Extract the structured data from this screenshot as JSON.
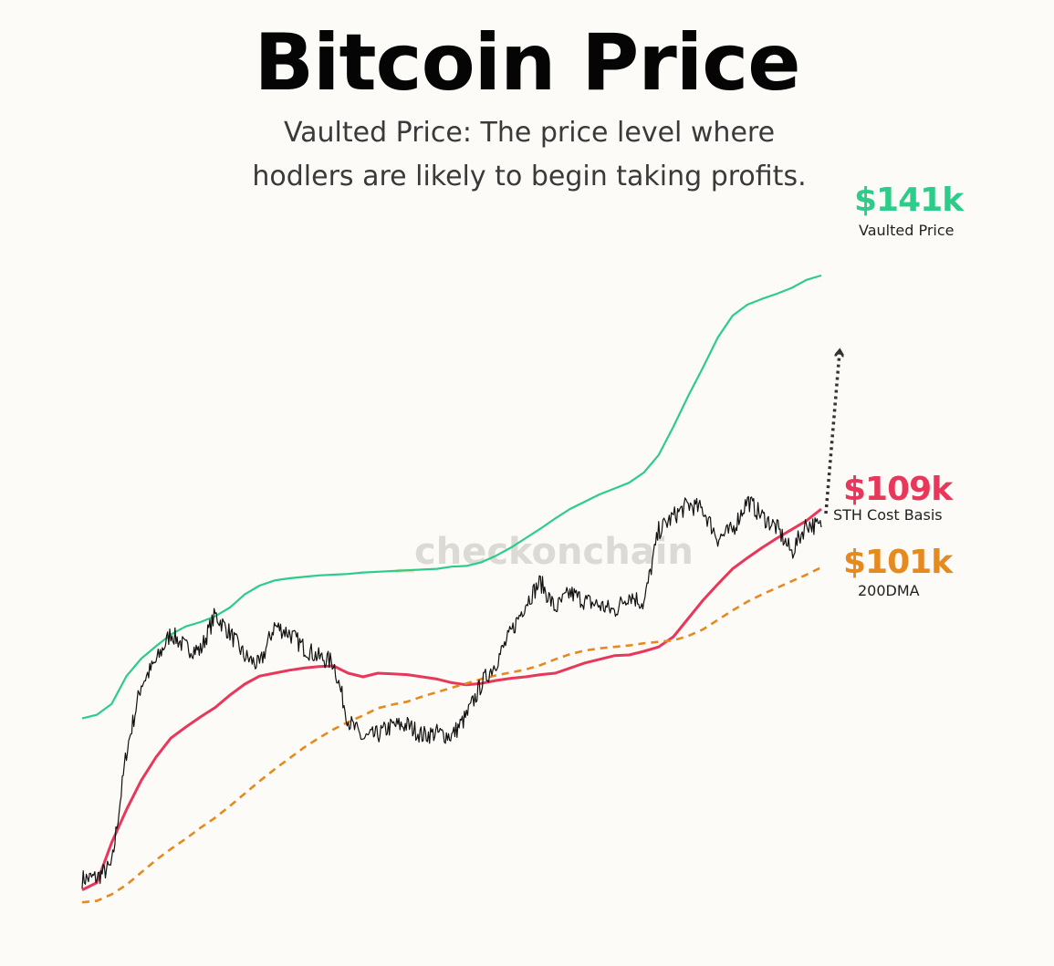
{
  "title": "Bitcoin Price",
  "subtitle_line1": "Vaulted Price: The price level where",
  "subtitle_line2": "hodlers are likely to begin taking profits.",
  "watermark_prefix": "_",
  "watermark_text": "checkonchain",
  "colors": {
    "price": "#111111",
    "vaulted": "#2ecc8a",
    "sth": "#e8375a",
    "dma": "#e58a1f",
    "arrow": "#333333",
    "background": "#fcfbf8"
  },
  "labels": {
    "vaulted": {
      "value": "$141k",
      "name": "Vaulted Price"
    },
    "sth": {
      "value": "$109k",
      "name": "STH Cost Basis"
    },
    "dma": {
      "value": "$101k",
      "name": "200DMA"
    }
  },
  "chart_data": {
    "type": "line",
    "title": "Bitcoin Price",
    "xlabel": "",
    "ylabel": "",
    "axes_visible": false,
    "grid": false,
    "legend": "none",
    "y_unit": "USD thousands (approx.)",
    "ylim": [
      55,
      150
    ],
    "x": [
      0,
      2,
      4,
      6,
      8,
      10,
      12,
      14,
      16,
      18,
      20,
      22,
      24,
      26,
      28,
      30,
      32,
      34,
      36,
      38,
      40,
      42,
      44,
      46,
      48,
      50,
      52,
      54,
      56,
      58,
      60,
      62,
      64,
      66,
      68,
      70,
      72,
      74,
      76,
      78,
      80,
      82,
      84,
      86,
      88,
      90,
      92,
      94,
      96,
      98,
      100
    ],
    "series": [
      {
        "name": "Vaulted Price",
        "values": [
          80.3,
          80.8,
          82.3,
          86.1,
          88.5,
          90.2,
          91.8,
          92.9,
          93.5,
          94.3,
          95.5,
          97.3,
          98.5,
          99.2,
          99.5,
          99.7,
          99.9,
          100.0,
          100.1,
          100.3,
          100.4,
          100.5,
          100.6,
          100.7,
          100.8,
          101.1,
          101.2,
          101.7,
          102.6,
          103.7,
          105.0,
          106.3,
          107.7,
          109.0,
          110.0,
          111.0,
          111.8,
          112.6,
          114.0,
          116.4,
          120.3,
          124.5,
          128.4,
          132.5,
          135.5,
          137.0,
          137.8,
          138.5,
          139.3,
          140.4,
          141.0
        ]
      },
      {
        "name": "STH Cost Basis",
        "values": [
          56.8,
          57.8,
          63.3,
          67.8,
          71.8,
          75.0,
          77.6,
          79.1,
          80.5,
          81.8,
          83.5,
          85.0,
          86.1,
          86.5,
          86.9,
          87.2,
          87.4,
          87.5,
          86.5,
          86.0,
          86.5,
          86.4,
          86.3,
          86.0,
          85.7,
          85.2,
          84.9,
          85.1,
          85.5,
          85.8,
          86.0,
          86.3,
          86.5,
          87.2,
          87.9,
          88.4,
          88.9,
          89.0,
          89.5,
          90.1,
          91.5,
          94.0,
          96.5,
          98.7,
          100.8,
          102.3,
          103.7,
          105.0,
          106.2,
          107.4,
          109.0
        ]
      },
      {
        "name": "200DMA",
        "values": [
          55.1,
          55.3,
          56.2,
          57.5,
          59.2,
          60.9,
          62.4,
          63.8,
          65.3,
          66.7,
          68.3,
          70.0,
          71.7,
          73.3,
          74.8,
          76.3,
          77.6,
          78.8,
          79.8,
          80.7,
          81.7,
          82.2,
          82.6,
          83.3,
          83.9,
          84.5,
          85.1,
          85.7,
          86.2,
          86.6,
          87.0,
          87.6,
          88.4,
          89.1,
          89.6,
          89.9,
          90.1,
          90.3,
          90.6,
          90.8,
          91.0,
          91.6,
          92.5,
          93.8,
          95.1,
          96.3,
          97.3,
          98.2,
          99.1,
          100.0,
          101.0
        ]
      },
      {
        "name": "Price",
        "values": [
          58.3,
          58.5,
          60.1,
          75.7,
          85.0,
          88.1,
          92.0,
          90.0,
          89.6,
          94.5,
          92.0,
          88.8,
          87.5,
          93.0,
          92.0,
          90.0,
          88.7,
          88.0,
          80.0,
          77.5,
          78.1,
          79.3,
          79.4,
          78.0,
          78.3,
          77.9,
          80.6,
          85.0,
          88.0,
          92.0,
          96.1,
          99.0,
          95.3,
          97.5,
          96.4,
          95.8,
          95.0,
          97.3,
          96.0,
          106.0,
          108.0,
          109.6,
          108.9,
          105.0,
          106.1,
          110.2,
          108.0,
          106.4,
          103.0,
          107.0,
          106.5
        ]
      }
    ],
    "annotations": [
      "dotted arrow pointing up-right from latest price"
    ]
  }
}
